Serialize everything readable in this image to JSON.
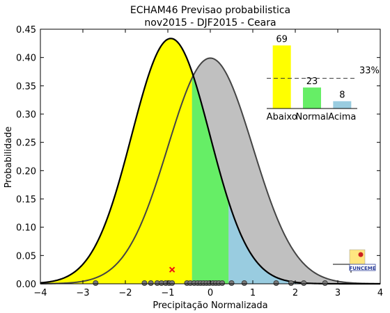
{
  "chart_data": [
    {
      "type": "area",
      "title": "ECHAM46 Previsao probabilistica",
      "subtitle": "nov2015 - DJF2015 - Ceara",
      "xlabel": "Precipitação Normalizada",
      "ylabel": "Probabilidade",
      "xlim": [
        -4,
        4
      ],
      "ylim": [
        0,
        0.45
      ],
      "xticks": [
        "−4",
        "−3",
        "−2",
        "−1",
        "0",
        "1",
        "2",
        "3",
        "4"
      ],
      "yticks": [
        "0.00",
        "0.05",
        "0.10",
        "0.15",
        "0.20",
        "0.25",
        "0.30",
        "0.35",
        "0.40",
        "0.45"
      ],
      "grid": false,
      "forecast_distribution": {
        "mean": -0.93,
        "sd": 0.92,
        "color": "#000000"
      },
      "climatology_distribution": {
        "mean": 0.0,
        "sd": 1.0,
        "color": "#444444"
      },
      "category_bounds": [
        -0.43,
        0.43
      ],
      "category_colors": {
        "below": "#ffff00",
        "normal": "#66ee66",
        "above": "#99cce0",
        "climatology": "#c0c0c0"
      },
      "members_x": [
        -2.7,
        -1.55,
        -1.4,
        -1.25,
        -1.15,
        -1.05,
        -0.97,
        -0.9,
        -0.55,
        -0.47,
        -0.38,
        -0.3,
        -0.23,
        -0.16,
        -0.09,
        -0.02,
        0.06,
        0.13,
        0.2,
        0.28,
        0.5,
        0.8,
        1.55,
        1.9,
        2.2,
        2.7
      ],
      "ensemble_mean_x": -0.9,
      "ensemble_mean_y": 0.025
    },
    {
      "type": "bar",
      "categories": [
        "Abaixo",
        "Normal",
        "Acima"
      ],
      "values": [
        69,
        23,
        8
      ],
      "colors": [
        "#ffff00",
        "#66ee66",
        "#99cce0"
      ],
      "ylim": [
        0,
        70
      ],
      "reference_line": {
        "value": 33,
        "label": "33%"
      }
    }
  ],
  "logo": {
    "text": "FUNCEME"
  }
}
